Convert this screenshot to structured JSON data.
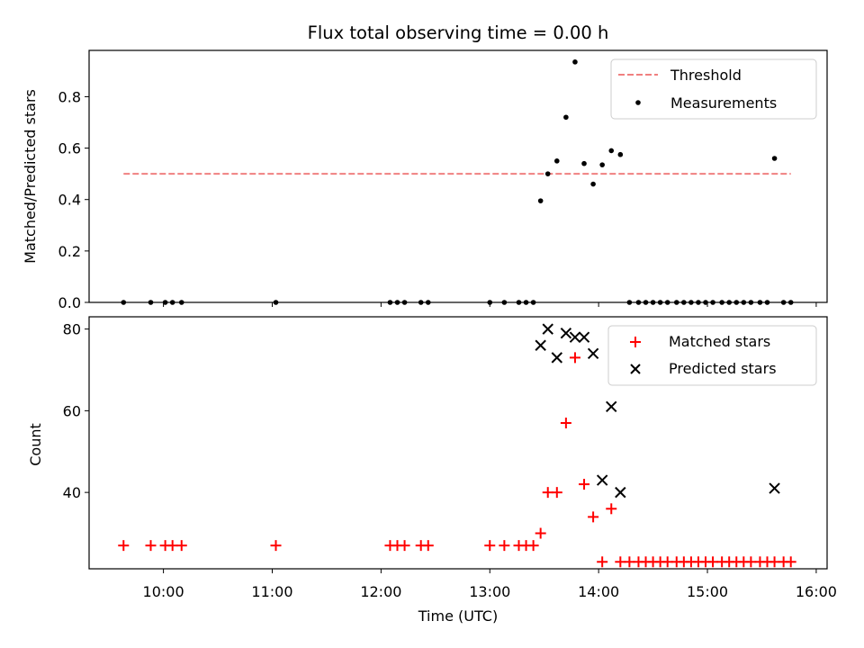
{
  "chart_data": [
    {
      "type": "scatter",
      "title": "Flux total observing time = 0.00 h",
      "xlabel": "",
      "ylabel": "Matched/Predicted stars",
      "xlim": [
        "09:19",
        "16:06"
      ],
      "ylim": [
        0.0,
        0.98
      ],
      "yticks": [
        "0.0",
        "0.2",
        "0.4",
        "0.6",
        "0.8"
      ],
      "legend_position": "top-right",
      "threshold": {
        "name": "Threshold",
        "value": 0.5,
        "x_start": "09:38",
        "x_end": "15:46",
        "color": "#f08080",
        "style": "dashed"
      },
      "series": [
        {
          "name": "Measurements",
          "marker": "dot",
          "color": "#000000",
          "points": [
            [
              "09:38",
              0.0
            ],
            [
              "09:53",
              0.0
            ],
            [
              "10:01",
              0.0
            ],
            [
              "10:05",
              0.0
            ],
            [
              "10:10",
              0.0
            ],
            [
              "11:02",
              0.0
            ],
            [
              "12:05",
              0.0
            ],
            [
              "12:09",
              0.0
            ],
            [
              "12:13",
              0.0
            ],
            [
              "12:22",
              0.0
            ],
            [
              "12:26",
              0.0
            ],
            [
              "13:00",
              0.0
            ],
            [
              "13:08",
              0.0
            ],
            [
              "13:16",
              0.0
            ],
            [
              "13:20",
              0.0
            ],
            [
              "13:24",
              0.0
            ],
            [
              "13:28",
              0.395
            ],
            [
              "13:32",
              0.5
            ],
            [
              "13:37",
              0.55
            ],
            [
              "13:42",
              0.72
            ],
            [
              "13:47",
              0.935
            ],
            [
              "13:52",
              0.54
            ],
            [
              "13:57",
              0.46
            ],
            [
              "14:02",
              0.535
            ],
            [
              "14:07",
              0.59
            ],
            [
              "14:12",
              0.575
            ],
            [
              "14:17",
              0.0
            ],
            [
              "14:22",
              0.0
            ],
            [
              "14:26",
              0.0
            ],
            [
              "14:30",
              0.0
            ],
            [
              "14:34",
              0.0
            ],
            [
              "14:38",
              0.0
            ],
            [
              "14:43",
              0.0
            ],
            [
              "14:47",
              0.0
            ],
            [
              "14:51",
              0.0
            ],
            [
              "14:55",
              0.0
            ],
            [
              "14:59",
              0.0
            ],
            [
              "15:03",
              0.0
            ],
            [
              "15:08",
              0.0
            ],
            [
              "15:12",
              0.0
            ],
            [
              "15:16",
              0.0
            ],
            [
              "15:20",
              0.0
            ],
            [
              "15:24",
              0.0
            ],
            [
              "15:29",
              0.0
            ],
            [
              "15:33",
              0.0
            ],
            [
              "15:37",
              0.56
            ],
            [
              "15:42",
              0.0
            ],
            [
              "15:46",
              0.0
            ]
          ]
        }
      ]
    },
    {
      "type": "scatter",
      "title": "",
      "xlabel": "Time (UTC)",
      "ylabel": "Count",
      "xlim": [
        "09:19",
        "16:06"
      ],
      "ylim": [
        21.3,
        83.0
      ],
      "yticks": [
        "40",
        "60",
        "80"
      ],
      "xticks": [
        "10:00",
        "11:00",
        "12:00",
        "13:00",
        "14:00",
        "15:00",
        "16:00"
      ],
      "legend_position": "top-right",
      "series": [
        {
          "name": "Matched stars",
          "marker": "plus",
          "color": "#ff0000",
          "points": [
            [
              "09:38",
              27
            ],
            [
              "09:53",
              27
            ],
            [
              "10:01",
              27
            ],
            [
              "10:05",
              27
            ],
            [
              "10:10",
              27
            ],
            [
              "11:02",
              27
            ],
            [
              "12:05",
              27
            ],
            [
              "12:09",
              27
            ],
            [
              "12:13",
              27
            ],
            [
              "12:22",
              27
            ],
            [
              "12:26",
              27
            ],
            [
              "13:00",
              27
            ],
            [
              "13:08",
              27
            ],
            [
              "13:16",
              27
            ],
            [
              "13:20",
              27
            ],
            [
              "13:24",
              27
            ],
            [
              "13:28",
              30
            ],
            [
              "13:32",
              40
            ],
            [
              "13:37",
              40
            ],
            [
              "13:42",
              57
            ],
            [
              "13:47",
              73
            ],
            [
              "13:52",
              42
            ],
            [
              "13:57",
              34
            ],
            [
              "14:02",
              23
            ],
            [
              "14:07",
              36
            ],
            [
              "14:12",
              23
            ],
            [
              "14:17",
              23
            ],
            [
              "14:22",
              23
            ],
            [
              "14:26",
              23
            ],
            [
              "14:30",
              23
            ],
            [
              "14:34",
              23
            ],
            [
              "14:38",
              23
            ],
            [
              "14:43",
              23
            ],
            [
              "14:47",
              23
            ],
            [
              "14:51",
              23
            ],
            [
              "14:55",
              23
            ],
            [
              "14:59",
              23
            ],
            [
              "15:03",
              23
            ],
            [
              "15:08",
              23
            ],
            [
              "15:12",
              23
            ],
            [
              "15:16",
              23
            ],
            [
              "15:20",
              23
            ],
            [
              "15:24",
              23
            ],
            [
              "15:29",
              23
            ],
            [
              "15:33",
              23
            ],
            [
              "15:37",
              23
            ],
            [
              "15:42",
              23
            ],
            [
              "15:46",
              23
            ]
          ]
        },
        {
          "name": "Predicted stars",
          "marker": "x",
          "color": "#000000",
          "points": [
            [
              "13:28",
              76
            ],
            [
              "13:32",
              80
            ],
            [
              "13:37",
              73
            ],
            [
              "13:42",
              79
            ],
            [
              "13:47",
              78
            ],
            [
              "13:52",
              78
            ],
            [
              "13:57",
              74
            ],
            [
              "14:02",
              43
            ],
            [
              "14:07",
              61
            ],
            [
              "14:12",
              40
            ],
            [
              "15:37",
              41
            ]
          ]
        }
      ]
    }
  ]
}
